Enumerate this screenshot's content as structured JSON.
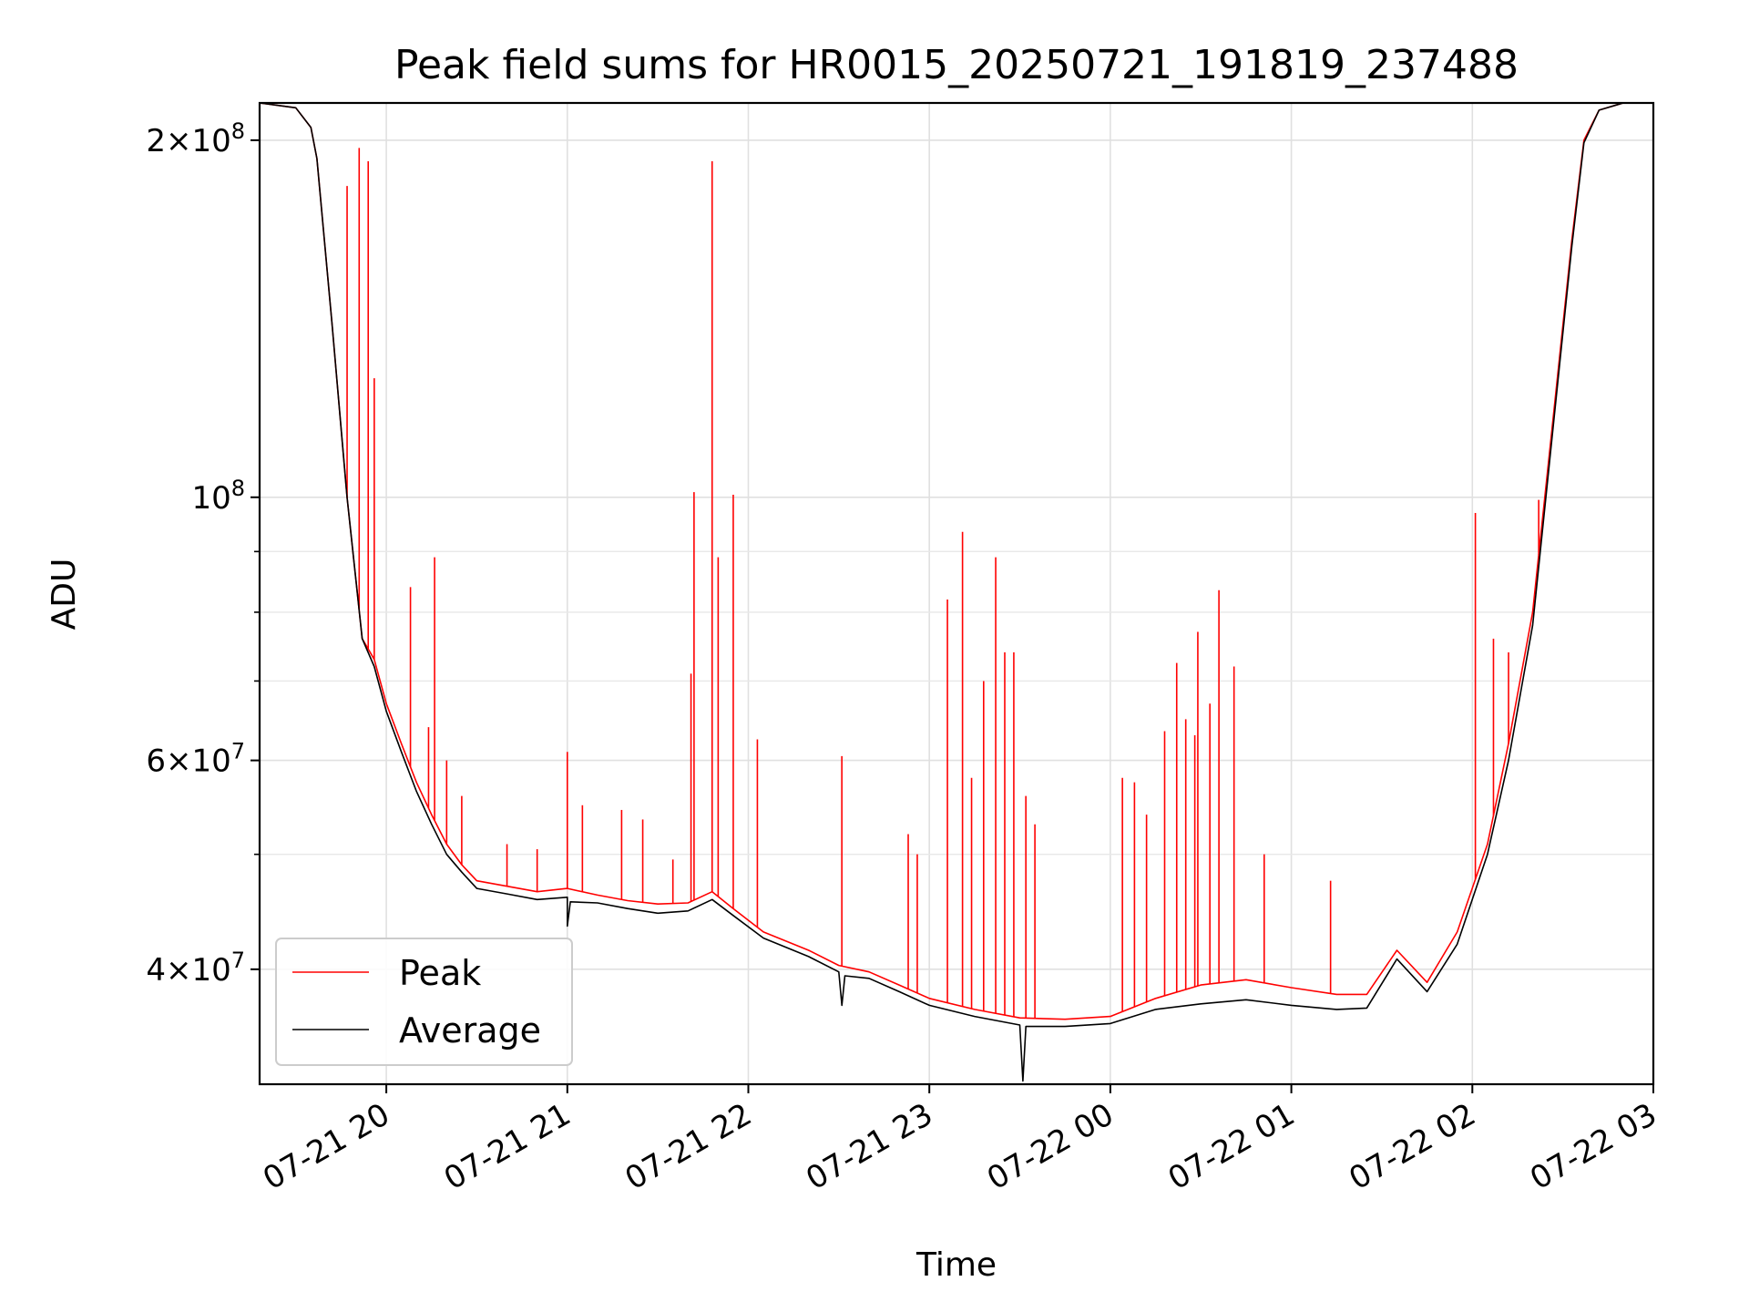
{
  "chart_data": {
    "type": "line",
    "title": "Peak field sums for HR0015_20250721_191819_237488",
    "xlabel": "Time",
    "ylabel": "ADU",
    "yscale": "log",
    "ylim": [
      32000000,
      215000000
    ],
    "xlim": [
      "2025-07-21 19:18",
      "2025-07-22 03:00"
    ],
    "grid": true,
    "legend_position": "lower-left",
    "x_ticks": [
      {
        "t": "2025-07-21 20:00",
        "label": "07-21 20"
      },
      {
        "t": "2025-07-21 21:00",
        "label": "07-21 21"
      },
      {
        "t": "2025-07-21 22:00",
        "label": "07-21 22"
      },
      {
        "t": "2025-07-21 23:00",
        "label": "07-21 23"
      },
      {
        "t": "2025-07-22 00:00",
        "label": "07-22 00"
      },
      {
        "t": "2025-07-22 01:00",
        "label": "07-22 01"
      },
      {
        "t": "2025-07-22 02:00",
        "label": "07-22 02"
      },
      {
        "t": "2025-07-22 03:00",
        "label": "07-22 03"
      }
    ],
    "y_ticks_major": [
      {
        "value": 40000000,
        "mantissa": "4",
        "exp": "7"
      },
      {
        "value": 60000000,
        "mantissa": "6",
        "exp": "7"
      },
      {
        "value": 100000000,
        "mantissa": "",
        "exp": "8"
      },
      {
        "value": 200000000,
        "mantissa": "2",
        "exp": "8"
      }
    ],
    "y_ticks_minor": [
      50000000,
      70000000,
      80000000,
      90000000
    ],
    "series": [
      {
        "name": "Peak",
        "color": "#ff0000",
        "points": [
          [
            "2025-07-21 19:18",
            215000000
          ],
          [
            "2025-07-21 19:30",
            213000000
          ],
          [
            "2025-07-21 19:35",
            205000000
          ],
          [
            "2025-07-21 19:37",
            193000000
          ],
          [
            "2025-07-21 19:42",
            140000000
          ],
          [
            "2025-07-21 19:47",
            100000000
          ],
          [
            "2025-07-21 19:52",
            76000000
          ],
          [
            "2025-07-21 19:56",
            73000000
          ],
          [
            "2025-07-21 20:00",
            67000000
          ],
          [
            "2025-07-21 20:05",
            62000000
          ],
          [
            "2025-07-21 20:10",
            57500000
          ],
          [
            "2025-07-21 20:15",
            54000000
          ],
          [
            "2025-07-21 20:20",
            51000000
          ],
          [
            "2025-07-21 20:25",
            49000000
          ],
          [
            "2025-07-21 20:30",
            47500000
          ],
          [
            "2025-07-21 20:40",
            47000000
          ],
          [
            "2025-07-21 20:50",
            46500000
          ],
          [
            "2025-07-21 21:00",
            46800000
          ],
          [
            "2025-07-21 21:10",
            46200000
          ],
          [
            "2025-07-21 21:20",
            45700000
          ],
          [
            "2025-07-21 21:30",
            45400000
          ],
          [
            "2025-07-21 21:40",
            45500000
          ],
          [
            "2025-07-21 21:48",
            46500000
          ],
          [
            "2025-07-21 21:55",
            45000000
          ],
          [
            "2025-07-21 22:05",
            43000000
          ],
          [
            "2025-07-21 22:20",
            41500000
          ],
          [
            "2025-07-21 22:30",
            40300000
          ],
          [
            "2025-07-21 22:40",
            39800000
          ],
          [
            "2025-07-21 22:50",
            38800000
          ],
          [
            "2025-07-21 23:00",
            37800000
          ],
          [
            "2025-07-21 23:15",
            37000000
          ],
          [
            "2025-07-21 23:30",
            36400000
          ],
          [
            "2025-07-21 23:45",
            36300000
          ],
          [
            "2025-07-22 00:00",
            36500000
          ],
          [
            "2025-07-22 00:15",
            37800000
          ],
          [
            "2025-07-22 00:30",
            38800000
          ],
          [
            "2025-07-22 00:45",
            39200000
          ],
          [
            "2025-07-22 01:00",
            38600000
          ],
          [
            "2025-07-22 01:15",
            38100000
          ],
          [
            "2025-07-22 01:25",
            38100000
          ],
          [
            "2025-07-22 01:35",
            41500000
          ],
          [
            "2025-07-22 01:45",
            39000000
          ],
          [
            "2025-07-22 01:55",
            43000000
          ],
          [
            "2025-07-22 02:05",
            51000000
          ],
          [
            "2025-07-22 02:12",
            62000000
          ],
          [
            "2025-07-22 02:20",
            80000000
          ],
          [
            "2025-07-22 02:27",
            118000000
          ],
          [
            "2025-07-22 02:33",
            165000000
          ],
          [
            "2025-07-22 02:37",
            200000000
          ],
          [
            "2025-07-22 02:42",
            212000000
          ],
          [
            "2025-07-22 02:50",
            215000000
          ],
          [
            "2025-07-22 03:00",
            215000000
          ]
        ],
        "spikes": [
          [
            "2025-07-21 19:47",
            183000000
          ],
          [
            "2025-07-21 19:51",
            197000000
          ],
          [
            "2025-07-21 19:54",
            192000000
          ],
          [
            "2025-07-21 19:56",
            126000000
          ],
          [
            "2025-07-21 20:08",
            84000000
          ],
          [
            "2025-07-21 20:16",
            89000000
          ],
          [
            "2025-07-21 20:14",
            64000000
          ],
          [
            "2025-07-21 20:20",
            60000000
          ],
          [
            "2025-07-21 20:25",
            56000000
          ],
          [
            "2025-07-21 20:40",
            51000000
          ],
          [
            "2025-07-21 20:50",
            50500000
          ],
          [
            "2025-07-21 21:00",
            61000000
          ],
          [
            "2025-07-21 21:05",
            55000000
          ],
          [
            "2025-07-21 21:18",
            54500000
          ],
          [
            "2025-07-21 21:25",
            53500000
          ],
          [
            "2025-07-21 21:35",
            49500000
          ],
          [
            "2025-07-21 21:41",
            71000000
          ],
          [
            "2025-07-21 21:42",
            101000000
          ],
          [
            "2025-07-21 21:48",
            192000000
          ],
          [
            "2025-07-21 21:50",
            89000000
          ],
          [
            "2025-07-21 21:55",
            100500000
          ],
          [
            "2025-07-21 22:03",
            62500000
          ],
          [
            "2025-07-21 22:31",
            60500000
          ],
          [
            "2025-07-21 22:53",
            52000000
          ],
          [
            "2025-07-21 22:56",
            50000000
          ],
          [
            "2025-07-21 23:06",
            82000000
          ],
          [
            "2025-07-21 23:11",
            93500000
          ],
          [
            "2025-07-21 23:14",
            58000000
          ],
          [
            "2025-07-21 23:18",
            70000000
          ],
          [
            "2025-07-21 23:22",
            89000000
          ],
          [
            "2025-07-21 23:25",
            74000000
          ],
          [
            "2025-07-21 23:28",
            74000000
          ],
          [
            "2025-07-21 23:32",
            56000000
          ],
          [
            "2025-07-21 23:35",
            53000000
          ],
          [
            "2025-07-22 00:04",
            58000000
          ],
          [
            "2025-07-22 00:08",
            57500000
          ],
          [
            "2025-07-22 00:12",
            54000000
          ],
          [
            "2025-07-22 00:18",
            63500000
          ],
          [
            "2025-07-22 00:22",
            72500000
          ],
          [
            "2025-07-22 00:25",
            65000000
          ],
          [
            "2025-07-22 00:28",
            63000000
          ],
          [
            "2025-07-22 00:29",
            77000000
          ],
          [
            "2025-07-22 00:33",
            67000000
          ],
          [
            "2025-07-22 00:36",
            83500000
          ],
          [
            "2025-07-22 00:41",
            72000000
          ],
          [
            "2025-07-22 00:51",
            50000000
          ],
          [
            "2025-07-22 01:13",
            47500000
          ],
          [
            "2025-07-22 02:01",
            97000000
          ],
          [
            "2025-07-22 02:07",
            76000000
          ],
          [
            "2025-07-22 02:12",
            74000000
          ],
          [
            "2025-07-22 02:22",
            99500000
          ]
        ]
      },
      {
        "name": "Average",
        "color": "#000000",
        "points": [
          [
            "2025-07-21 19:18",
            215000000
          ],
          [
            "2025-07-21 19:30",
            213000000
          ],
          [
            "2025-07-21 19:35",
            205000000
          ],
          [
            "2025-07-21 19:37",
            193000000
          ],
          [
            "2025-07-21 19:42",
            140000000
          ],
          [
            "2025-07-21 19:47",
            100000000
          ],
          [
            "2025-07-21 19:52",
            76000000
          ],
          [
            "2025-07-21 19:56",
            72000000
          ],
          [
            "2025-07-21 20:00",
            66000000
          ],
          [
            "2025-07-21 20:05",
            61000000
          ],
          [
            "2025-07-21 20:10",
            56500000
          ],
          [
            "2025-07-21 20:15",
            53000000
          ],
          [
            "2025-07-21 20:20",
            50000000
          ],
          [
            "2025-07-21 20:25",
            48300000
          ],
          [
            "2025-07-21 20:30",
            46800000
          ],
          [
            "2025-07-21 20:40",
            46300000
          ],
          [
            "2025-07-21 20:50",
            45800000
          ],
          [
            "2025-07-21 21:00",
            46000000
          ],
          [
            "2025-07-21 21:00",
            43500000
          ],
          [
            "2025-07-21 21:01",
            45600000
          ],
          [
            "2025-07-21 21:10",
            45500000
          ],
          [
            "2025-07-21 21:20",
            45000000
          ],
          [
            "2025-07-21 21:30",
            44600000
          ],
          [
            "2025-07-21 21:40",
            44800000
          ],
          [
            "2025-07-21 21:48",
            45800000
          ],
          [
            "2025-07-21 21:55",
            44400000
          ],
          [
            "2025-07-21 22:05",
            42500000
          ],
          [
            "2025-07-21 22:20",
            41000000
          ],
          [
            "2025-07-21 22:30",
            39800000
          ],
          [
            "2025-07-21 22:31",
            37300000
          ],
          [
            "2025-07-21 22:32",
            39500000
          ],
          [
            "2025-07-21 22:40",
            39300000
          ],
          [
            "2025-07-21 22:50",
            38300000
          ],
          [
            "2025-07-21 23:00",
            37300000
          ],
          [
            "2025-07-21 23:15",
            36500000
          ],
          [
            "2025-07-21 23:30",
            35900000
          ],
          [
            "2025-07-21 23:31",
            32200000
          ],
          [
            "2025-07-21 23:32",
            35800000
          ],
          [
            "2025-07-21 23:45",
            35800000
          ],
          [
            "2025-07-22 00:00",
            36000000
          ],
          [
            "2025-07-22 00:15",
            37000000
          ],
          [
            "2025-07-22 00:30",
            37400000
          ],
          [
            "2025-07-22 00:45",
            37700000
          ],
          [
            "2025-07-22 01:00",
            37300000
          ],
          [
            "2025-07-22 01:15",
            37000000
          ],
          [
            "2025-07-22 01:25",
            37100000
          ],
          [
            "2025-07-22 01:35",
            40800000
          ],
          [
            "2025-07-22 01:45",
            38300000
          ],
          [
            "2025-07-22 01:55",
            42000000
          ],
          [
            "2025-07-22 02:05",
            50000000
          ],
          [
            "2025-07-22 02:12",
            60000000
          ],
          [
            "2025-07-22 02:20",
            78000000
          ],
          [
            "2025-07-22 02:27",
            116000000
          ],
          [
            "2025-07-22 02:33",
            163000000
          ],
          [
            "2025-07-22 02:37",
            199000000
          ],
          [
            "2025-07-22 02:42",
            212000000
          ],
          [
            "2025-07-22 02:50",
            215000000
          ],
          [
            "2025-07-22 03:00",
            215000000
          ]
        ]
      }
    ]
  }
}
